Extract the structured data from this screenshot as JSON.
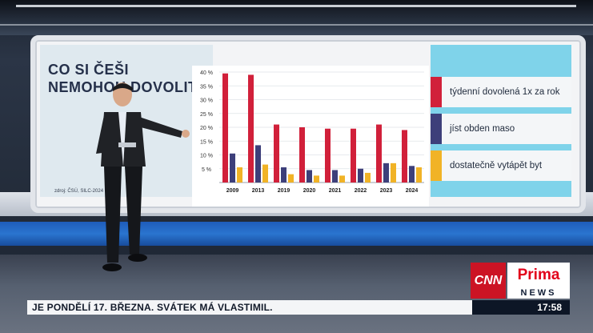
{
  "screen": {
    "title": "CO SI ČEŠI NEMOHOU DOVOLIT",
    "source": "zdroj: ČSÚ, SILC-2024"
  },
  "chart_data": {
    "type": "bar",
    "categories": [
      "2009",
      "2013",
      "2019",
      "2020",
      "2021",
      "2022",
      "2023",
      "2024"
    ],
    "y_ticks": [
      "40 %",
      "35 %",
      "30 %",
      "25 %",
      "20 %",
      "15 %",
      "10 %",
      "5 %"
    ],
    "ylim": [
      0,
      40
    ],
    "grid": true,
    "legend_position": "right",
    "series": [
      {
        "name": "týdenní dovolená 1x za rok",
        "color": "#d1203a",
        "values": [
          39.5,
          39,
          21,
          20,
          19.5,
          19.5,
          21,
          19
        ]
      },
      {
        "name": "jíst obden maso",
        "color": "#3d3f7a",
        "values": [
          10.5,
          13.5,
          5.5,
          4.5,
          4.5,
          5,
          7,
          6
        ]
      },
      {
        "name": "dostatečně vytápět byt",
        "color": "#f1b326",
        "values": [
          5.5,
          6.5,
          3,
          2.5,
          2.5,
          3.5,
          7,
          5.5
        ]
      }
    ]
  },
  "ticker": {
    "text": "JE PONDĚLÍ 17. BŘEZNA. SVÁTEK MÁ VLASTIMIL.",
    "time": "17:58"
  },
  "logo": {
    "cnn": "CNN",
    "prima": "Prima",
    "news": "NEWS"
  }
}
